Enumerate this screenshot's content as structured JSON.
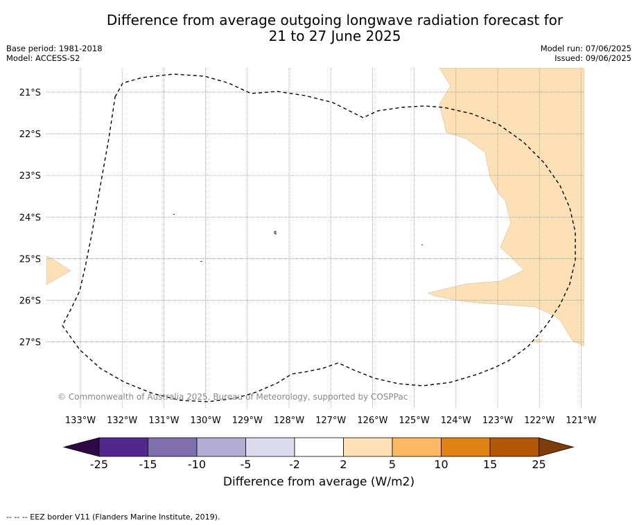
{
  "title_line1": "Difference from average outgoing longwave radiation forecast for",
  "title_line2": "21 to 27 June 2025",
  "base_period": "Base period: 1981-2018",
  "model": "Model: ACCESS-S2",
  "model_run": "Model run: 07/06/2025",
  "issued": "Issued: 09/06/2025",
  "copyright": "© Commonwealth of Australia 2025, Bureau of Meteorology, supported by COSPPac",
  "lat_labels": [
    "21°S",
    "22°S",
    "23°S",
    "24°S",
    "25°S",
    "26°S",
    "27°S"
  ],
  "lon_labels": [
    "133°W",
    "132°W",
    "131°W",
    "130°W",
    "129°W",
    "128°W",
    "127°W",
    "126°W",
    "125°W",
    "124°W",
    "123°W",
    "122°W",
    "121°W"
  ],
  "colorbar": {
    "label": "Difference from average (W/m2)",
    "ticks": [
      "-25",
      "-15",
      "-10",
      "-5",
      "-2",
      "2",
      "5",
      "10",
      "15",
      "25"
    ],
    "colors": [
      "#2d0a45",
      "#54278f",
      "#7f6fac",
      "#b3acd3",
      "#dcdbed",
      "#ffffff",
      "#fde0b6",
      "#fdb863",
      "#e08214",
      "#b35806",
      "#7f3b08"
    ]
  },
  "legend_footer": "--  --  -- EEZ border V11 (Flanders Marine Institute, 2019).",
  "colors": {
    "positive_fill": "#fde0b6",
    "grid": "#888888"
  }
}
